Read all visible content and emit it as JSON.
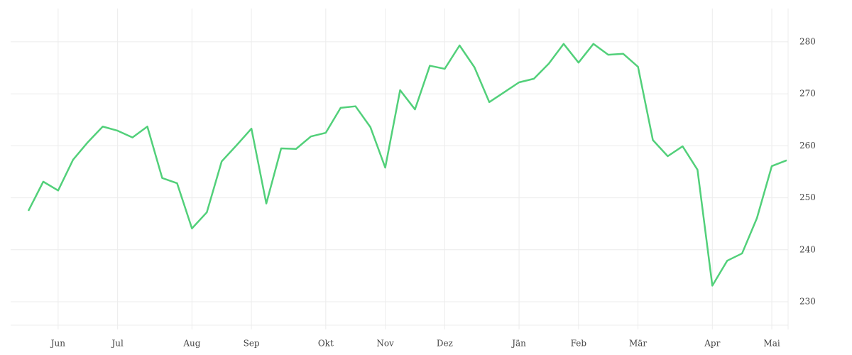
{
  "chart_data": {
    "type": "line",
    "categories": [
      null,
      null,
      "Jun",
      null,
      null,
      null,
      "Jul",
      null,
      null,
      null,
      null,
      "Aug",
      null,
      null,
      null,
      "Sep",
      null,
      null,
      null,
      null,
      "Okt",
      null,
      null,
      null,
      "Nov",
      null,
      null,
      null,
      "Dez",
      null,
      null,
      null,
      null,
      "Jän",
      null,
      null,
      null,
      "Feb",
      null,
      null,
      null,
      "Mär",
      null,
      null,
      null,
      null,
      "Apr",
      null,
      null,
      null,
      "Mai",
      null
    ],
    "series": [
      {
        "name": null,
        "color": "#52d07a",
        "values": [
          247.5,
          253.1,
          251.4,
          257.3,
          260.7,
          263.7,
          262.9,
          261.6,
          263.7,
          253.8,
          252.8,
          244.1,
          247.2,
          257.0,
          260.1,
          263.3,
          248.9,
          259.5,
          259.4,
          261.8,
          262.5,
          267.3,
          267.6,
          263.6,
          255.8,
          270.7,
          267.0,
          275.4,
          274.8,
          279.3,
          275.1,
          268.4,
          270.3,
          272.2,
          272.9,
          275.8,
          279.6,
          276.0,
          279.6,
          277.5,
          277.7,
          275.2,
          261.1,
          258.0,
          259.9,
          255.4,
          233.1,
          237.9,
          239.3,
          246.1,
          256.1,
          257.2
        ]
      }
    ],
    "ylim": [
      225.5,
      286.4
    ],
    "yticks": [
      230,
      240,
      250,
      260,
      270,
      280
    ],
    "grid": true
  }
}
